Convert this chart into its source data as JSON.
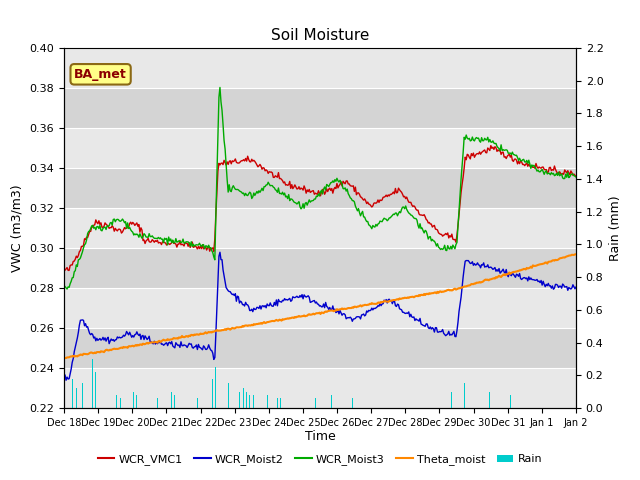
{
  "title": "Soil Moisture",
  "xlabel": "Time",
  "ylabel_left": "VWC (m3/m3)",
  "ylabel_right": "Rain (mm)",
  "ylim_left": [
    0.22,
    0.4
  ],
  "ylim_right": [
    0.0,
    2.2
  ],
  "background_color": "#ffffff",
  "plot_bg_light": "#e8e8e8",
  "plot_bg_dark": "#d0d0d0",
  "grid_color": "#ffffff",
  "series_colors": {
    "WCR_VMC1": "#cc0000",
    "WCR_Moist2": "#0000cc",
    "WCR_Moist3": "#00aa00",
    "Theta_moist": "#ff8800",
    "Rain": "#00cccc"
  },
  "annotation_text": "BA_met",
  "annotation_color": "#8b0000",
  "annotation_bg": "#ffff88",
  "x_tick_labels": [
    "Dec 18",
    "Dec 19",
    "Dec 20",
    "Dec 21",
    "Dec 22",
    "Dec 23",
    "Dec 24",
    "Dec 25",
    "Dec 26",
    "Dec 27",
    "Dec 28",
    "Dec 29",
    "Dec 30",
    "Dec 31",
    "Jan 1",
    "Jan 2"
  ],
  "n_points": 500
}
